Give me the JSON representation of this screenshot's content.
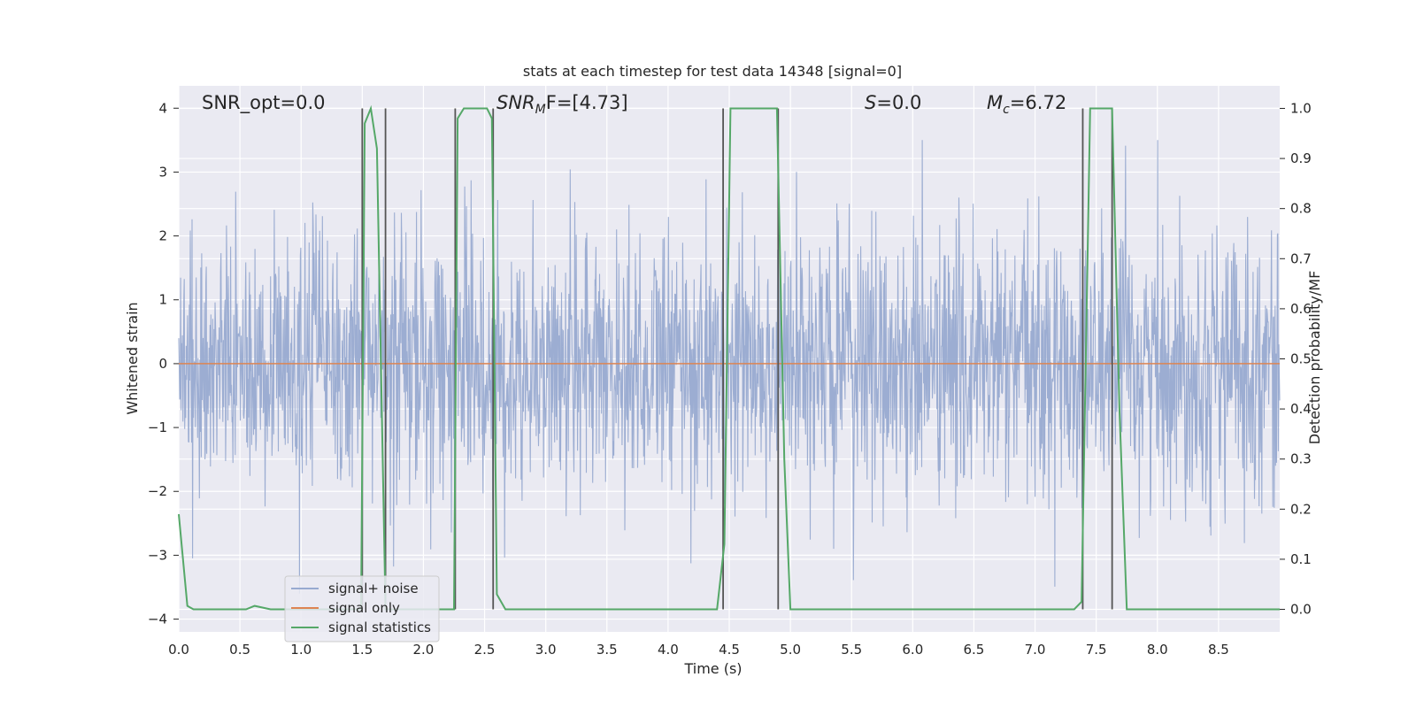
{
  "chart_data": {
    "type": "line",
    "title": "stats at each timestep for test data 14348 [signal=0]",
    "xlabel": "Time (s)",
    "ylabel": "Whitened strain",
    "ylabel_right": "Detection probability/MF",
    "xlim": [
      0.0,
      9.0
    ],
    "ylim": [
      -4.2,
      4.35
    ],
    "ylim_right": [
      -0.045,
      1.045
    ],
    "x_ticks": [
      "0.0",
      "0.5",
      "1.0",
      "1.5",
      "2.0",
      "2.5",
      "3.0",
      "3.5",
      "4.0",
      "4.5",
      "5.0",
      "5.5",
      "6.0",
      "6.5",
      "7.0",
      "7.5",
      "8.0",
      "8.5"
    ],
    "x_tick_values": [
      0,
      0.5,
      1,
      1.5,
      2,
      2.5,
      3,
      3.5,
      4,
      4.5,
      5,
      5.5,
      6,
      6.5,
      7,
      7.5,
      8,
      8.5
    ],
    "y_ticks": [
      "−4",
      "−3",
      "−2",
      "−1",
      "0",
      "1",
      "2",
      "3",
      "4"
    ],
    "y_tick_values": [
      -4,
      -3,
      -2,
      -1,
      0,
      1,
      2,
      3,
      4
    ],
    "y_ticks_right": [
      "0.0",
      "0.1",
      "0.2",
      "0.3",
      "0.4",
      "0.5",
      "0.6",
      "0.7",
      "0.8",
      "0.9",
      "1.0"
    ],
    "y_tick_values_right": [
      0,
      0.1,
      0.2,
      0.3,
      0.4,
      0.5,
      0.6,
      0.7,
      0.8,
      0.9,
      1.0
    ],
    "grid": true,
    "legend_position": "lower-left",
    "annotations": {
      "snr_opt": "SNR_opt=0.0",
      "snr_mf_base": "SNR",
      "snr_mf_sub": "M",
      "snr_mf_rest": "F=[4.73]",
      "s_base": "S",
      "s_rest": "=0.0",
      "mc_base": "M",
      "mc_sub": "c",
      "mc_rest": "=6.72"
    },
    "series": [
      {
        "name": "signal+ noise",
        "color": "#98aad0",
        "axis": "left",
        "description_values": "dense whitened noise, range approx -3.6 to 3.5"
      },
      {
        "name": "signal only",
        "color": "#dd8452",
        "axis": "left",
        "x": [
          0.0,
          9.0
        ],
        "y": [
          0.0,
          0.0
        ]
      },
      {
        "name": "signal statistics",
        "color": "#55a868",
        "axis": "right",
        "x": [
          0.0,
          0.07,
          0.12,
          0.25,
          0.55,
          0.62,
          0.75,
          1.0,
          1.49,
          1.52,
          1.57,
          1.62,
          1.69,
          1.73,
          1.76,
          2.0,
          2.25,
          2.28,
          2.33,
          2.38,
          2.52,
          2.56,
          2.6,
          2.67,
          2.8,
          3.5,
          4.0,
          4.4,
          4.46,
          4.51,
          4.8,
          4.89,
          4.95,
          5.0,
          5.5,
          6.0,
          7.0,
          7.32,
          7.38,
          7.45,
          7.55,
          7.63,
          7.69,
          7.75,
          8.0,
          9.0
        ],
        "y": [
          0.19,
          0.007,
          0.0,
          0.0,
          0.0,
          0.007,
          0.0,
          0.0,
          0.0,
          0.97,
          1.0,
          0.92,
          0.0,
          0.0,
          0.0,
          0.0,
          0.0,
          0.98,
          1.0,
          1.0,
          1.0,
          0.98,
          0.03,
          0.0,
          0.0,
          0.0,
          0.0,
          0.0,
          0.13,
          1.0,
          1.0,
          1.0,
          0.3,
          0.0,
          0.0,
          0.0,
          0.0,
          0.0,
          0.015,
          1.0,
          1.0,
          1.0,
          0.4,
          0.0,
          0.0,
          0.0
        ]
      }
    ],
    "vertical_markers": {
      "color": "#555555",
      "x": [
        1.5,
        1.69,
        2.26,
        2.57,
        4.45,
        4.9,
        7.39,
        7.63
      ]
    },
    "colors": {
      "axes_background": "#eaeaf2",
      "grid": "#ffffff",
      "text": "#262626"
    }
  }
}
